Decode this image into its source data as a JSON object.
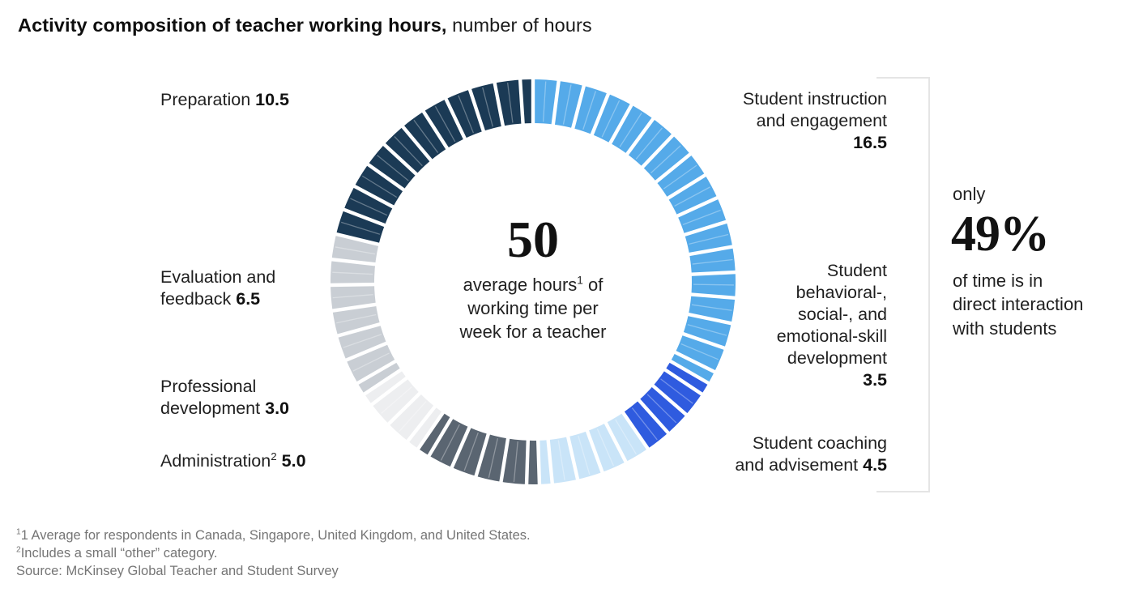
{
  "header": {
    "title_bold": "Activity composition of teacher working hours,",
    "title_rest": "number of hours"
  },
  "center": {
    "value": "50",
    "sup": "1",
    "line1a": "average hours",
    "line1b": "of",
    "line2": "working time per",
    "line3": "week for a teacher"
  },
  "labels": {
    "preparation": {
      "name": "Preparation",
      "value": "10.5"
    },
    "evaluation": {
      "line1": "Evaluation and",
      "line2": "feedback",
      "value": "6.5"
    },
    "professional": {
      "line1": "Professional",
      "line2": "development",
      "value": "3.0"
    },
    "administration": {
      "name": "Administration",
      "sup": "2",
      "value": "5.0"
    },
    "instruction": {
      "line1": "Student instruction",
      "line2": "and engagement",
      "value": "16.5"
    },
    "behavioral": {
      "line1": "Student",
      "line2": "behavioral-,",
      "line3": "social-, and",
      "line4": "emotional-skill",
      "line5": "development",
      "value": "3.5"
    },
    "coaching": {
      "line1": "Student coaching",
      "line2": "and advisement",
      "value": "4.5"
    }
  },
  "annotation": {
    "pre": "only",
    "big": "49%",
    "line1": "of time is in",
    "line2": "direct interaction",
    "line3": "with students"
  },
  "footnotes": {
    "f1_sup": "1",
    "f1": "1 Average for respondents in Canada, Singapore, United Kingdom, and United States.",
    "f2_sup": "2",
    "f2": "Includes a small “other” category.",
    "source": "Source: McKinsey Global Teacher and Student Survey"
  },
  "chart_data": {
    "type": "donut",
    "title": "Activity composition of teacher working hours, number of hours",
    "center_value": 50,
    "center_label": "average hours of working time per week for a teacher",
    "unit": "hours per week",
    "direction": "clockwise-from-top",
    "categories": [
      "Student instruction and engagement",
      "Student behavioral-, social-, and emotional-skill development",
      "Student coaching and advisement",
      "Administration",
      "Professional development",
      "Evaluation and feedback",
      "Preparation"
    ],
    "series": [
      {
        "name": "Student instruction and engagement",
        "value": 16.5,
        "color": "#55AAE9"
      },
      {
        "name": "Student behavioral-, social-, and emotional-skill development",
        "value": 3.5,
        "color": "#2F5BDF"
      },
      {
        "name": "Student coaching and advisement",
        "value": 4.5,
        "color": "#C9E4F8"
      },
      {
        "name": "Administration",
        "value": 5.0,
        "color": "#5A6571"
      },
      {
        "name": "Professional development",
        "value": 3.0,
        "color": "#EDEEF0"
      },
      {
        "name": "Evaluation and feedback",
        "value": 6.5,
        "color": "#C9CED4"
      },
      {
        "name": "Preparation",
        "value": 10.5,
        "color": "#1B3A55"
      }
    ],
    "annotation": "only 49% of time is in direct interaction with students",
    "segment_tick_interval_hours": 1,
    "half_tick_interval_hours": 0.5,
    "background": "#ffffff"
  }
}
